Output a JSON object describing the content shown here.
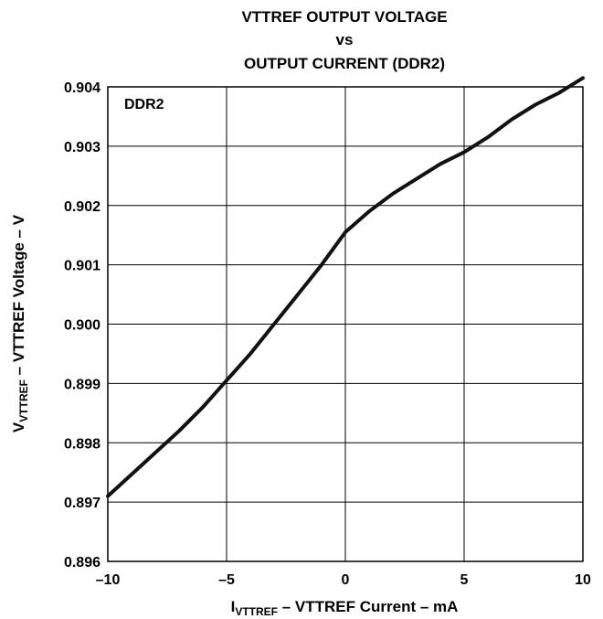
{
  "chart_data": {
    "type": "line",
    "title_lines": [
      "VTTREF OUTPUT VOLTAGE",
      "vs",
      "OUTPUT CURRENT (DDR2)"
    ],
    "annotation": "DDR2",
    "xlabel": {
      "main": "I",
      "sub": "VTTREF",
      "rest": " – VTTREF Current – mA"
    },
    "ylabel": {
      "main": "V",
      "sub": "VTTREF",
      "rest": " – VTTREF Voltage – V"
    },
    "xlim": [
      -10,
      10
    ],
    "ylim": [
      0.896,
      0.904
    ],
    "x_ticks": [
      -10,
      -5,
      0,
      5,
      10
    ],
    "x_tick_labels": [
      "–10",
      "–5",
      "0",
      "5",
      "10"
    ],
    "y_ticks": [
      0.896,
      0.897,
      0.898,
      0.899,
      0.9,
      0.901,
      0.902,
      0.903,
      0.904
    ],
    "y_tick_labels": [
      "0.896",
      "0.897",
      "0.898",
      "0.899",
      "0.900",
      "0.901",
      "0.902",
      "0.903",
      "0.904"
    ],
    "grid": true,
    "series": [
      {
        "color": "#111111",
        "x": [
          -10,
          -8.5,
          -7,
          -6,
          -5,
          -4,
          -3.5,
          -3,
          -2,
          -1,
          0,
          1,
          2,
          3,
          4,
          5,
          6,
          7,
          8,
          9,
          10
        ],
        "y": [
          0.8971,
          0.89765,
          0.8982,
          0.8986,
          0.89905,
          0.8995,
          0.89975,
          0.9,
          0.9005,
          0.901,
          0.90155,
          0.9019,
          0.9022,
          0.90245,
          0.9027,
          0.9029,
          0.90315,
          0.90345,
          0.9037,
          0.9039,
          0.90415
        ]
      }
    ]
  }
}
